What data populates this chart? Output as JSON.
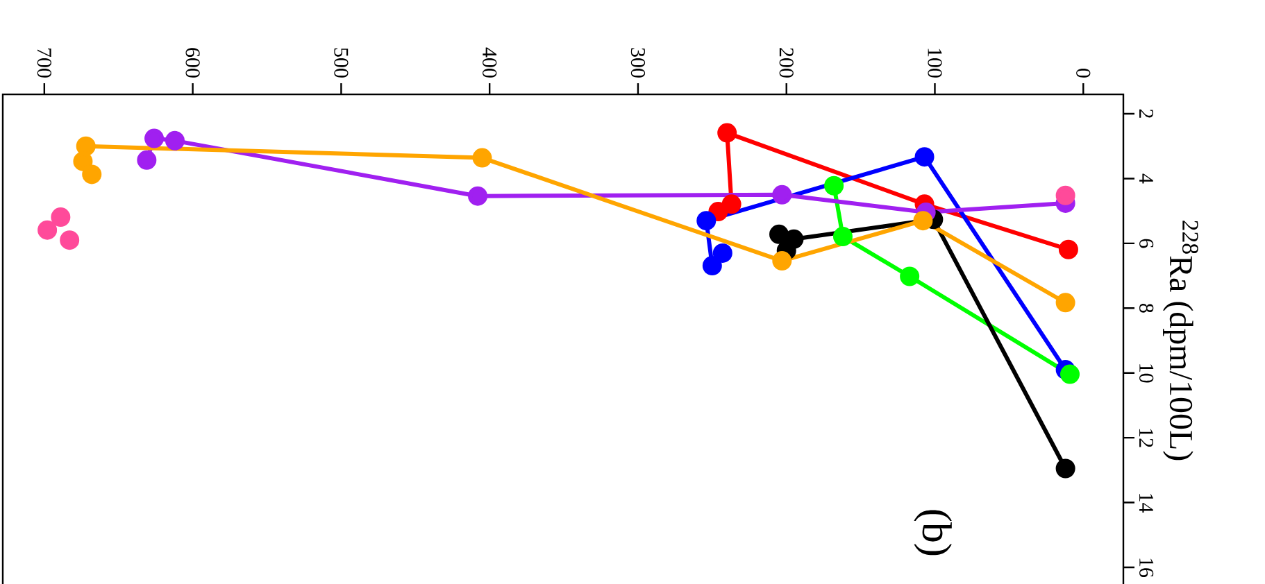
{
  "chart_data": {
    "type": "line",
    "ylabel": "$^{228}$Ra (dpm/100L)",
    "annotations": [
      "(b)"
    ],
    "xlim": [
      728,
      -27
    ],
    "ylim": [
      16.6,
      1.4
    ],
    "xticks": [
      0,
      100,
      200,
      300,
      400,
      500,
      600,
      700
    ],
    "yticks": [
      2,
      4,
      6,
      8,
      10,
      12,
      14,
      16
    ],
    "marker": "circle",
    "series": [
      {
        "color": "#ff0000",
        "x": [
          10,
          107,
          240,
          237,
          246
        ],
        "values": [
          6.19,
          4.79,
          2.59,
          4.79,
          5.02
        ]
      },
      {
        "color": "#0000ff",
        "x": [
          12,
          107,
          254,
          250,
          243
        ],
        "values": [
          9.9,
          3.33,
          5.3,
          6.69,
          6.3
        ]
      },
      {
        "color": "#00ff00",
        "x": [
          9,
          117,
          162,
          168
        ],
        "values": [
          10.04,
          7.02,
          5.79,
          4.22
        ]
      },
      {
        "color": "#000000",
        "x": [
          12,
          101,
          195,
          200,
          205
        ],
        "values": [
          12.95,
          5.26,
          5.87,
          6.22,
          5.72
        ]
      },
      {
        "color": "#a020f0",
        "x": [
          12,
          106,
          203,
          408,
          612,
          626,
          631
        ],
        "values": [
          4.76,
          5.04,
          4.5,
          4.54,
          2.83,
          2.76,
          3.43
        ]
      },
      {
        "color": "#ffa500",
        "x": [
          12,
          108,
          203,
          405,
          672,
          674,
          668
        ],
        "values": [
          7.83,
          5.3,
          6.54,
          3.36,
          3.0,
          3.47,
          3.87
        ]
      },
      {
        "type": "scatter",
        "color": "#ff4a9a",
        "x": [
          12,
          689,
          698,
          683
        ],
        "values": [
          4.52,
          5.19,
          5.59,
          5.9
        ]
      }
    ]
  }
}
